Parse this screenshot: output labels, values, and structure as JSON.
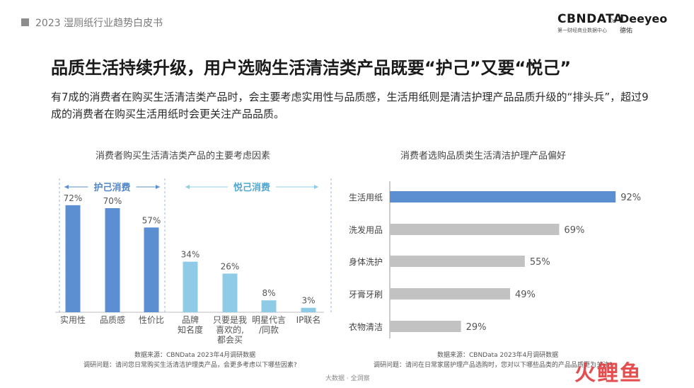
{
  "header": {
    "report_title": "2023 湿厕纸行业趋势白皮书",
    "logo_cbn": "CBNDATA",
    "logo_cbn_sub": "第一财经商业数据中心",
    "logo_x": "×",
    "logo_deeyeo": "Deeyeo",
    "logo_deeyeo_sub": "德佑"
  },
  "headline": "品质生活持续升级，用户选购生活清洁类产品既要“护己”又要“悦己”",
  "subtext": "有7成的消费者在购买生活清洁类产品时，会主要考虑实用性与品质感，生活用纸则是清洁护理产品品质升级的“排头兵”，超过9成的消费者在购买生活用纸时会更关注产品品质。",
  "colors": {
    "blue": "#5b8fd1",
    "light_blue": "#8fcbe6",
    "gray": "#c2c2c2"
  },
  "chart_data": [
    {
      "type": "bar",
      "title": "消费者购买生活清洁类产品的主要考虑因素",
      "groups": [
        {
          "label": "护己消费",
          "categories": [
            "实用性",
            "品质感",
            "性价比"
          ],
          "color": "#5b8fd1"
        },
        {
          "label": "悦己消费",
          "categories": [
            "品牌知名度",
            "只要是我喜欢的，都会买",
            "明星代言/同款",
            "IP联名"
          ],
          "color": "#8fcbe6"
        }
      ],
      "categories": [
        "实用性",
        "品质感",
        "性价比",
        "品牌知名度",
        "只要是我喜欢的，都会买",
        "明星代言/同款",
        "IP联名"
      ],
      "category_lines": [
        [
          "实用性"
        ],
        [
          "品质感"
        ],
        [
          "性价比"
        ],
        [
          "品牌",
          "知名度"
        ],
        [
          "只要是我",
          "喜欢的,",
          "都会买"
        ],
        [
          "明星代言",
          "/同款"
        ],
        [
          "IP联名"
        ]
      ],
      "values": [
        72,
        70,
        57,
        34,
        26,
        8,
        3
      ],
      "value_labels": [
        "72%",
        "70%",
        "57%",
        "34%",
        "26%",
        "8%",
        "3%"
      ],
      "ylim": [
        0,
        100
      ],
      "source": "数据来源：CBNData 2023年4月调研数据",
      "question": "调研问题：请问您日常购买生活清洁护理类产品，会更多考虑以下哪些因素?"
    },
    {
      "type": "bar",
      "orientation": "horizontal",
      "title": "消费者选购品质类生活清洁护理产品偏好",
      "categories": [
        "生活用纸",
        "洗发用品",
        "身体洗护",
        "牙膏牙刷",
        "衣物清洁"
      ],
      "values": [
        92,
        69,
        55,
        49,
        29
      ],
      "value_labels": [
        "92%",
        "69%",
        "55%",
        "49%",
        "29%"
      ],
      "xlim": [
        0,
        100
      ],
      "source": "数据来源：CBNData 2023年4月调研数据",
      "question": "调研问题：请问在日常家居护理产品选购时，您对以下哪些品类的产品品质更为关注?"
    }
  ],
  "footer": "大数据 · 全洞察",
  "watermark_logo": "火鲤鱼"
}
